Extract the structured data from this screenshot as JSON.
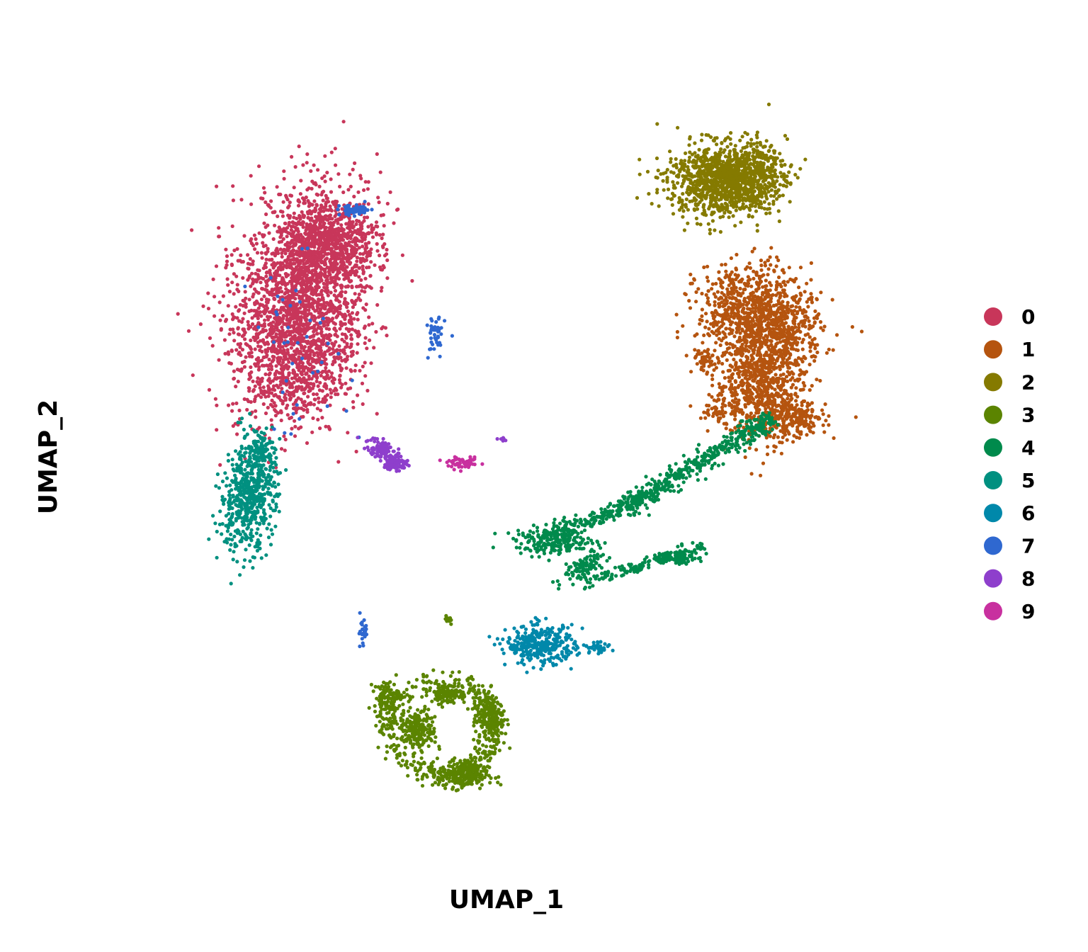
{
  "chart_data": {
    "type": "scatter",
    "title": "",
    "xlabel": "UMAP_1",
    "ylabel": "UMAP_2",
    "xlim": [
      -12,
      14
    ],
    "ylim": [
      -12,
      12
    ],
    "grid": false,
    "axes_visible": false,
    "legend_position": "right",
    "series": [
      {
        "name": "0",
        "color": "#C8365A",
        "clusters": [
          {
            "cx": -5.6,
            "cy": 5.4,
            "sx": 1.05,
            "sy": 1.55,
            "rot": -0.35,
            "n": 1700
          },
          {
            "cx": -5.9,
            "cy": 3.0,
            "sx": 0.9,
            "sy": 1.1,
            "rot": -0.2,
            "n": 800
          },
          {
            "cx": -4.7,
            "cy": 6.6,
            "sx": 0.7,
            "sy": 0.6,
            "rot": 0,
            "n": 500
          },
          {
            "cx": -4.1,
            "cy": 3.8,
            "sx": 0.25,
            "sy": 0.5,
            "rot": 0,
            "n": 40
          },
          {
            "cx": -7.9,
            "cy": 4.3,
            "sx": 0.15,
            "sy": 0.05,
            "rot": 0,
            "n": 8
          }
        ]
      },
      {
        "name": "1",
        "color": "#B5540F",
        "clusters": [
          {
            "cx": 8.9,
            "cy": 4.5,
            "sx": 0.85,
            "sy": 0.7,
            "rot": 0,
            "n": 700
          },
          {
            "cx": 9.2,
            "cy": 2.3,
            "sx": 0.7,
            "sy": 0.85,
            "rot": 0,
            "n": 700
          },
          {
            "cx": 10.1,
            "cy": 3.8,
            "sx": 0.6,
            "sy": 0.6,
            "rot": 0,
            "n": 300
          },
          {
            "cx": 10.2,
            "cy": 1.2,
            "sx": 0.6,
            "sy": 0.3,
            "rot": 0,
            "n": 250
          },
          {
            "cx": 7.5,
            "cy": 3.0,
            "sx": 0.18,
            "sy": 0.18,
            "rot": 0,
            "n": 45
          },
          {
            "cx": 7.9,
            "cy": 1.5,
            "sx": 0.3,
            "sy": 0.25,
            "rot": 0,
            "n": 50
          }
        ]
      },
      {
        "name": "2",
        "color": "#857A00",
        "clusters": [
          {
            "cx": 7.9,
            "cy": 8.5,
            "sx": 0.85,
            "sy": 0.55,
            "rot": 0,
            "n": 900
          },
          {
            "cx": 8.9,
            "cy": 8.7,
            "sx": 0.6,
            "sy": 0.5,
            "rot": 0,
            "n": 400
          }
        ]
      },
      {
        "name": "3",
        "color": "#5B8400",
        "clusters": [
          {
            "cx": -1.9,
            "cy": -8.4,
            "sx": 0.3,
            "sy": 0.3,
            "rot": 0,
            "n": 220
          },
          {
            "cx": -0.4,
            "cy": -9.8,
            "sx": 0.4,
            "sy": 0.22,
            "rot": 0,
            "n": 260
          },
          {
            "cx": 0.4,
            "cy": -8.0,
            "sx": 0.25,
            "sy": 0.45,
            "rot": 0,
            "n": 180
          },
          {
            "cx": -0.9,
            "cy": -7.3,
            "sx": 0.3,
            "sy": 0.15,
            "rot": 0,
            "n": 120
          },
          {
            "cx": -2.9,
            "cy": -7.4,
            "sx": 0.2,
            "sy": 0.25,
            "rot": 0,
            "n": 90
          },
          {
            "cx": -0.9,
            "cy": -5.0,
            "sx": 0.08,
            "sy": 0.1,
            "rot": 0,
            "n": 8
          }
        ],
        "ring": {
          "cx": -1.1,
          "cy": -8.3,
          "rx": 1.8,
          "ry": 1.4,
          "width": 0.18,
          "n": 350
        }
      },
      {
        "name": "4",
        "color": "#008A4C",
        "clusters": [
          {
            "cx": 2.6,
            "cy": -2.6,
            "sx": 0.65,
            "sy": 0.2,
            "rot": 0,
            "n": 220
          },
          {
            "cx": 3.5,
            "cy": -3.4,
            "sx": 0.4,
            "sy": 0.15,
            "rot": 0.5,
            "n": 100
          },
          {
            "cx": 6.5,
            "cy": -3.1,
            "sx": 0.3,
            "sy": 0.1,
            "rot": 0,
            "n": 80
          }
        ],
        "line": [
          {
            "x0": 2.4,
            "y0": -2.4,
            "x1": 5.5,
            "y1": -1.3,
            "w": 0.25,
            "n": 180
          },
          {
            "x0": 5.0,
            "y0": -1.5,
            "x1": 9.6,
            "y1": 1.2,
            "w": 0.35,
            "n": 420
          },
          {
            "x0": 3.5,
            "y0": -3.9,
            "x1": 7.5,
            "y1": -2.7,
            "w": 0.18,
            "n": 150
          }
        ]
      },
      {
        "name": "5",
        "color": "#009080",
        "clusters": [
          {
            "cx": -7.4,
            "cy": -1.3,
            "sx": 0.45,
            "sy": 0.8,
            "rot": -0.15,
            "n": 520
          },
          {
            "cx": -7.0,
            "cy": 0.2,
            "sx": 0.3,
            "sy": 0.4,
            "rot": 0,
            "n": 120
          }
        ]
      },
      {
        "name": "6",
        "color": "#0088AA",
        "clusters": [
          {
            "cx": 2.1,
            "cy": -5.8,
            "sx": 0.55,
            "sy": 0.3,
            "rot": 0,
            "n": 320
          },
          {
            "cx": 3.8,
            "cy": -5.9,
            "sx": 0.5,
            "sy": 0.08,
            "rot": 0,
            "n": 40
          }
        ]
      },
      {
        "name": "7",
        "color": "#2F68D0",
        "clusters": [
          {
            "cx": -3.9,
            "cy": 7.6,
            "sx": 0.25,
            "sy": 0.08,
            "rot": 0,
            "n": 60
          },
          {
            "cx": -1.3,
            "cy": 3.7,
            "sx": 0.15,
            "sy": 0.35,
            "rot": 0,
            "n": 45
          },
          {
            "cx": -3.7,
            "cy": -5.4,
            "sx": 0.08,
            "sy": 0.25,
            "rot": 0,
            "n": 25
          },
          {
            "cx": -5.7,
            "cy": 3.3,
            "sx": 0.8,
            "sy": 1.3,
            "rot": 0,
            "n": 40
          }
        ]
      },
      {
        "name": "8",
        "color": "#8E3FCC",
        "clusters": [
          {
            "cx": -3.0,
            "cy": 0.2,
            "sx": 0.3,
            "sy": 0.15,
            "rot": -0.4,
            "n": 90
          },
          {
            "cx": -2.6,
            "cy": -0.2,
            "sx": 0.2,
            "sy": 0.12,
            "rot": 0,
            "n": 80
          },
          {
            "cx": 0.9,
            "cy": 0.55,
            "sx": 0.1,
            "sy": 0.05,
            "rot": 0,
            "n": 6
          }
        ]
      },
      {
        "name": "9",
        "color": "#C8309F",
        "clusters": [
          {
            "cx": -0.4,
            "cy": -0.2,
            "sx": 0.25,
            "sy": 0.08,
            "rot": 0,
            "n": 60
          }
        ]
      }
    ]
  },
  "legend": {
    "items": [
      {
        "label": "0",
        "color": "#C8365A"
      },
      {
        "label": "1",
        "color": "#B5540F"
      },
      {
        "label": "2",
        "color": "#857A00"
      },
      {
        "label": "3",
        "color": "#5B8400"
      },
      {
        "label": "4",
        "color": "#008A4C"
      },
      {
        "label": "5",
        "color": "#009080"
      },
      {
        "label": "6",
        "color": "#0088AA"
      },
      {
        "label": "7",
        "color": "#2F68D0"
      },
      {
        "label": "8",
        "color": "#8E3FCC"
      },
      {
        "label": "9",
        "color": "#C8309F"
      }
    ]
  }
}
